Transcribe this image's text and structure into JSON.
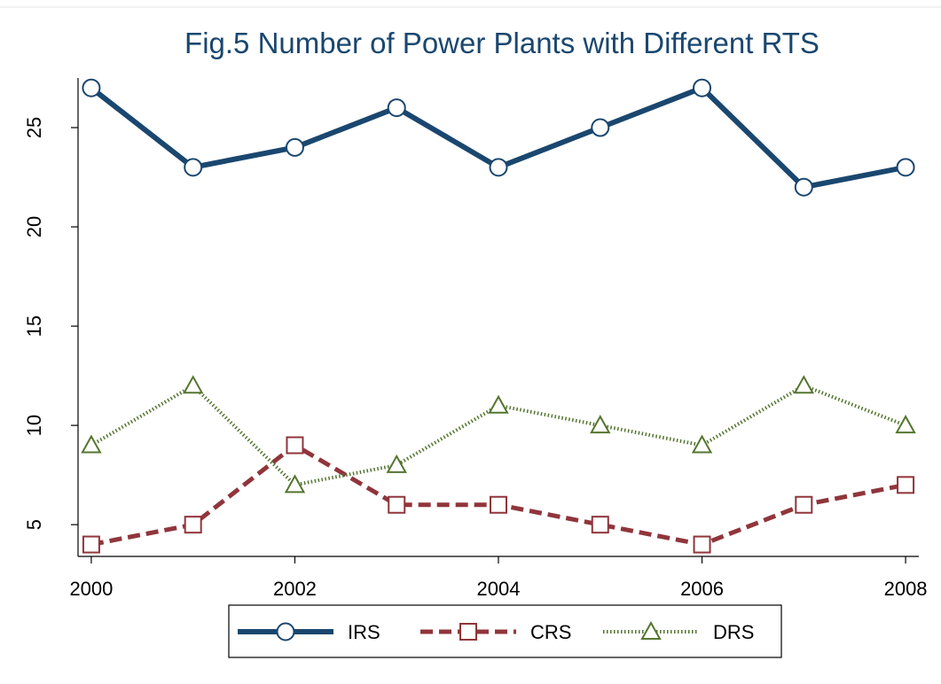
{
  "chart_data": {
    "type": "line",
    "title": "Fig.5 Number of Power Plants with Different RTS",
    "x": [
      2000,
      2001,
      2002,
      2003,
      2004,
      2005,
      2006,
      2007,
      2008
    ],
    "series": [
      {
        "name": "IRS",
        "color": "#1a476f",
        "line_style": "solid",
        "marker": "circle",
        "values": [
          27,
          23,
          24,
          26,
          23,
          25,
          27,
          22,
          23
        ]
      },
      {
        "name": "CRS",
        "color": "#90353b",
        "line_style": "dashed",
        "marker": "square",
        "values": [
          4,
          5,
          9,
          6,
          6,
          5,
          4,
          6,
          7
        ]
      },
      {
        "name": "DRS",
        "color": "#55752f",
        "line_style": "dotted",
        "marker": "triangle",
        "values": [
          9,
          12,
          7,
          8,
          11,
          10,
          9,
          12,
          10
        ]
      }
    ],
    "xlim": [
      1999.87,
      2008.13
    ],
    "xticks": [
      2000,
      2002,
      2004,
      2006,
      2008
    ],
    "ylim": [
      3.4,
      27.5
    ],
    "yticks": [
      5,
      10,
      15,
      20,
      25
    ],
    "grid": false,
    "legend": "bottom"
  }
}
